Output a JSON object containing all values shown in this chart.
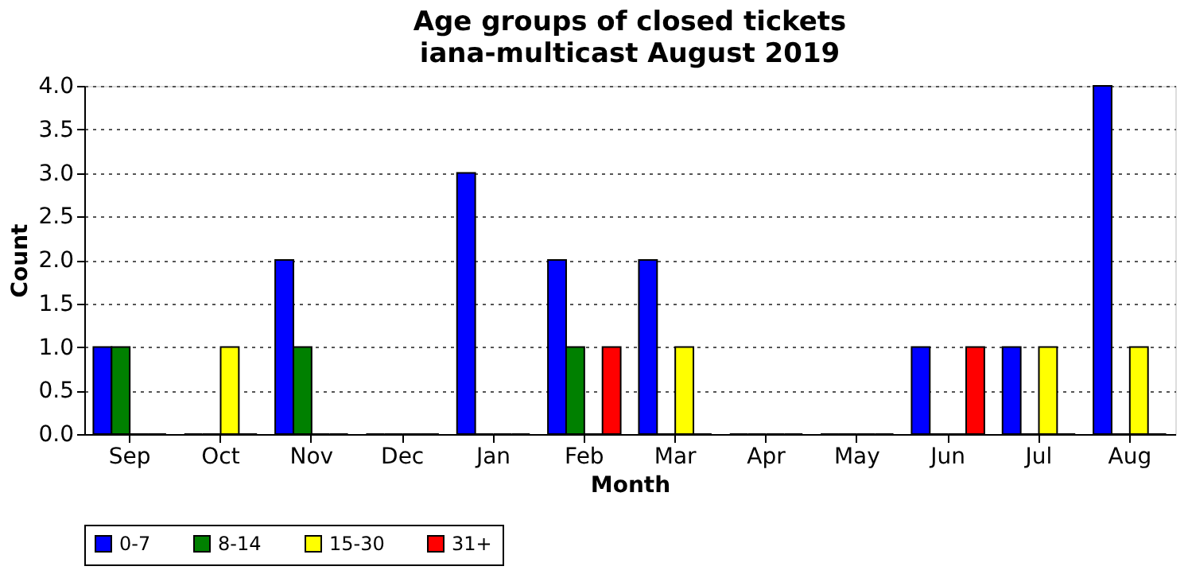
{
  "chart_data": {
    "type": "bar",
    "title": "Age groups of closed tickets",
    "subtitle": "iana-multicast August 2019",
    "xlabel": "Month",
    "ylabel": "Count",
    "categories": [
      "Sep",
      "Oct",
      "Nov",
      "Dec",
      "Jan",
      "Feb",
      "Mar",
      "Apr",
      "May",
      "Jun",
      "Jul",
      "Aug"
    ],
    "series": [
      {
        "name": "0-7",
        "color": "#0000ff",
        "values": [
          1,
          0,
          2,
          0,
          3,
          2,
          2,
          0,
          0,
          1,
          1,
          4
        ]
      },
      {
        "name": "8-14",
        "color": "#008000",
        "values": [
          1,
          0,
          1,
          0,
          0,
          1,
          0,
          0,
          0,
          0,
          0,
          0
        ]
      },
      {
        "name": "15-30",
        "color": "#ffff00",
        "values": [
          0,
          1,
          0,
          0,
          0,
          0,
          1,
          0,
          0,
          0,
          1,
          1
        ]
      },
      {
        "name": "31+",
        "color": "#ff0000",
        "values": [
          0,
          0,
          0,
          0,
          0,
          1,
          0,
          0,
          0,
          1,
          0,
          0
        ]
      }
    ],
    "ylim": [
      0,
      4
    ],
    "yticks": [
      {
        "value": 0,
        "label": "0.0"
      },
      {
        "value": 0.5,
        "label": "0.5"
      },
      {
        "value": 1,
        "label": "1.0"
      },
      {
        "value": 1.5,
        "label": "1.5"
      },
      {
        "value": 2,
        "label": "2.0"
      },
      {
        "value": 2.5,
        "label": "2.5"
      },
      {
        "value": 3,
        "label": "3.0"
      },
      {
        "value": 3.5,
        "label": "3.5"
      },
      {
        "value": 4,
        "label": "4.0"
      }
    ],
    "grid": "y",
    "legend": "bottom"
  }
}
